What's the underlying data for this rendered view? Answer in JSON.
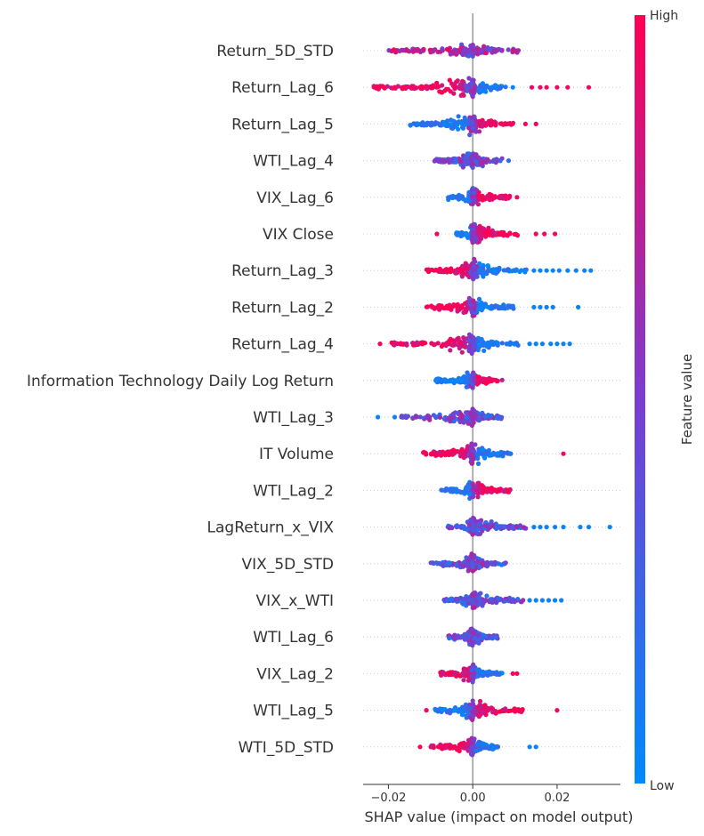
{
  "chart_data": {
    "type": "scatter",
    "subtype": "shap-beeswarm",
    "features": [
      {
        "name": "Return_5D_STD",
        "min": -0.02,
        "max": 0.011,
        "width": 0.3,
        "high_side": "both",
        "outliers": []
      },
      {
        "name": "Return_Lag_6",
        "min": -0.024,
        "max": 0.009,
        "width": 0.7,
        "high_side": "neg",
        "outliers": [
          {
            "x": -0.021,
            "c": 0.95
          },
          {
            "x": -0.016,
            "c": 0.95
          },
          {
            "x": -0.0125,
            "c": 0.95
          },
          {
            "x": 0.014,
            "c": 0.95
          },
          {
            "x": 0.016,
            "c": 0.95
          },
          {
            "x": 0.0175,
            "c": 0.95
          },
          {
            "x": 0.02,
            "c": 0.95
          },
          {
            "x": 0.0225,
            "c": 0.95
          },
          {
            "x": 0.0275,
            "c": 0.95
          },
          {
            "x": 0.0095,
            "c": 0.05
          }
        ]
      },
      {
        "name": "Return_Lag_5",
        "min": -0.015,
        "max": 0.01,
        "width": 0.7,
        "high_side": "pos",
        "outliers": [
          {
            "x": 0.0125,
            "c": 0.95
          },
          {
            "x": 0.015,
            "c": 0.95
          }
        ]
      },
      {
        "name": "WTI_Lag_4",
        "min": -0.01,
        "max": 0.007,
        "width": 0.5,
        "high_side": "none",
        "outliers": [
          {
            "x": 0.0085,
            "c": 0.2
          }
        ]
      },
      {
        "name": "VIX_Lag_6",
        "min": -0.006,
        "max": 0.009,
        "width": 0.5,
        "high_side": "pos",
        "outliers": [
          {
            "x": 0.0105,
            "c": 0.95
          }
        ]
      },
      {
        "name": "VIX Close",
        "min": -0.004,
        "max": 0.011,
        "width": 0.6,
        "high_side": "pos",
        "outliers": [
          {
            "x": -0.0085,
            "c": 0.95
          },
          {
            "x": 0.015,
            "c": 0.95
          },
          {
            "x": 0.017,
            "c": 0.95
          },
          {
            "x": 0.0195,
            "c": 0.95
          }
        ]
      },
      {
        "name": "Return_Lag_3",
        "min": -0.011,
        "max": 0.013,
        "width": 0.6,
        "high_side": "neg",
        "outliers": [
          {
            "x": 0.0145,
            "c": 0.05
          },
          {
            "x": 0.016,
            "c": 0.05
          },
          {
            "x": 0.0175,
            "c": 0.05
          },
          {
            "x": 0.019,
            "c": 0.05
          },
          {
            "x": 0.0205,
            "c": 0.05
          },
          {
            "x": 0.0225,
            "c": 0.05
          },
          {
            "x": 0.0245,
            "c": 0.05
          },
          {
            "x": 0.0265,
            "c": 0.05
          },
          {
            "x": 0.028,
            "c": 0.05
          }
        ]
      },
      {
        "name": "Return_Lag_2",
        "min": -0.011,
        "max": 0.01,
        "width": 0.6,
        "high_side": "neg",
        "outliers": [
          {
            "x": 0.0145,
            "c": 0.05
          },
          {
            "x": 0.016,
            "c": 0.05
          },
          {
            "x": 0.0175,
            "c": 0.05
          },
          {
            "x": 0.019,
            "c": 0.05
          },
          {
            "x": 0.025,
            "c": 0.05
          }
        ]
      },
      {
        "name": "Return_Lag_4",
        "min": -0.02,
        "max": 0.011,
        "width": 0.6,
        "high_side": "neg",
        "outliers": [
          {
            "x": -0.022,
            "c": 0.95
          },
          {
            "x": 0.0135,
            "c": 0.05
          },
          {
            "x": 0.015,
            "c": 0.05
          },
          {
            "x": 0.0165,
            "c": 0.05
          },
          {
            "x": 0.0185,
            "c": 0.05
          },
          {
            "x": 0.02,
            "c": 0.05
          },
          {
            "x": 0.0215,
            "c": 0.05
          },
          {
            "x": 0.023,
            "c": 0.05
          }
        ]
      },
      {
        "name": "Information Technology Daily Log Return",
        "min": -0.009,
        "max": 0.007,
        "width": 0.5,
        "high_side": "pos",
        "outliers": []
      },
      {
        "name": "WTI_Lag_3",
        "min": -0.017,
        "max": 0.007,
        "width": 0.5,
        "high_side": "none",
        "outliers": [
          {
            "x": -0.0225,
            "c": 0.05
          },
          {
            "x": -0.0185,
            "c": 0.05
          }
        ]
      },
      {
        "name": "IT Volume",
        "min": -0.012,
        "max": 0.009,
        "width": 0.6,
        "high_side": "neg",
        "outliers": [
          {
            "x": 0.0215,
            "c": 0.95
          }
        ]
      },
      {
        "name": "WTI_Lag_2",
        "min": -0.008,
        "max": 0.009,
        "width": 0.5,
        "high_side": "pos",
        "outliers": []
      },
      {
        "name": "LagReturn_x_VIX",
        "min": -0.006,
        "max": 0.013,
        "width": 0.5,
        "high_side": "none",
        "outliers": [
          {
            "x": 0.0145,
            "c": 0.05
          },
          {
            "x": 0.016,
            "c": 0.05
          },
          {
            "x": 0.0175,
            "c": 0.05
          },
          {
            "x": 0.0195,
            "c": 0.05
          },
          {
            "x": 0.0215,
            "c": 0.05
          },
          {
            "x": 0.0255,
            "c": 0.05
          },
          {
            "x": 0.0275,
            "c": 0.05
          },
          {
            "x": 0.0325,
            "c": 0.05
          }
        ]
      },
      {
        "name": "VIX_5D_STD",
        "min": -0.01,
        "max": 0.008,
        "width": 0.5,
        "high_side": "none",
        "outliers": []
      },
      {
        "name": "VIX_x_WTI",
        "min": -0.007,
        "max": 0.012,
        "width": 0.5,
        "high_side": "none",
        "outliers": [
          {
            "x": 0.0135,
            "c": 0.05
          },
          {
            "x": 0.015,
            "c": 0.05
          },
          {
            "x": 0.0165,
            "c": 0.05
          },
          {
            "x": 0.018,
            "c": 0.05
          },
          {
            "x": 0.0195,
            "c": 0.05
          },
          {
            "x": 0.021,
            "c": 0.05
          }
        ]
      },
      {
        "name": "WTI_Lag_6",
        "min": -0.006,
        "max": 0.006,
        "width": 0.5,
        "high_side": "none",
        "outliers": []
      },
      {
        "name": "VIX_Lag_2",
        "min": -0.008,
        "max": 0.007,
        "width": 0.6,
        "high_side": "neg",
        "outliers": [
          {
            "x": 0.0095,
            "c": 0.95
          },
          {
            "x": 0.0105,
            "c": 0.95
          }
        ]
      },
      {
        "name": "WTI_Lag_5",
        "min": -0.009,
        "max": 0.012,
        "width": 0.6,
        "high_side": "pos",
        "outliers": [
          {
            "x": -0.011,
            "c": 0.95
          },
          {
            "x": 0.02,
            "c": 0.95
          }
        ]
      },
      {
        "name": "WTI_5D_STD",
        "min": -0.01,
        "max": 0.006,
        "width": 0.5,
        "high_side": "neg",
        "outliers": [
          {
            "x": -0.0125,
            "c": 0.95
          },
          {
            "x": 0.0135,
            "c": 0.05
          },
          {
            "x": 0.015,
            "c": 0.05
          }
        ]
      }
    ],
    "xlabel": "SHAP value (impact on model output)",
    "xlim": [
      -0.026,
      0.035
    ],
    "xticks": [
      -0.02,
      0.0,
      0.02
    ],
    "xtick_labels": [
      "−0.02",
      "0.00",
      "0.02"
    ],
    "colorbar": {
      "label": "Feature value",
      "high_label": "High",
      "low_label": "Low",
      "low_color": "#008afb",
      "high_color": "#ff0052"
    },
    "grid": false
  }
}
